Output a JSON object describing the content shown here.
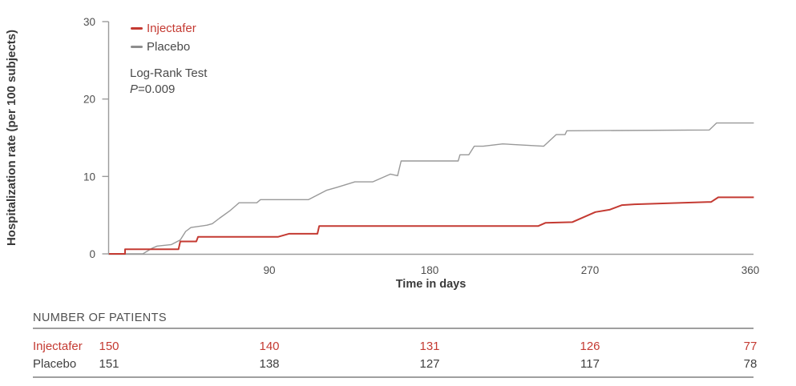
{
  "chart_data": {
    "type": "line",
    "subtype": "kaplan-meier-step",
    "title": "",
    "xlabel": "Time in days",
    "ylabel": "Hospitalization rate (per 100 subjects)",
    "xlim": [
      0,
      362
    ],
    "ylim": [
      0,
      30
    ],
    "x_ticks": [
      90,
      180,
      270,
      360
    ],
    "y_ticks": [
      0,
      10,
      20,
      30
    ],
    "grid": false,
    "legend_position": "top-left",
    "series": [
      {
        "name": "Injectafer",
        "color": "#c43a32",
        "stroke_width": 2,
        "points": [
          [
            0,
            0
          ],
          [
            9,
            0
          ],
          [
            9,
            0.6
          ],
          [
            39,
            0.6
          ],
          [
            40,
            1.6
          ],
          [
            49,
            1.6
          ],
          [
            50,
            2.2
          ],
          [
            95,
            2.2
          ],
          [
            101,
            2.6
          ],
          [
            117,
            2.6
          ],
          [
            118,
            3.6
          ],
          [
            241,
            3.6
          ],
          [
            245,
            4.0
          ],
          [
            260,
            4.1
          ],
          [
            273,
            5.4
          ],
          [
            281,
            5.7
          ],
          [
            288,
            6.3
          ],
          [
            295,
            6.4
          ],
          [
            336,
            6.7
          ],
          [
            338,
            6.7
          ],
          [
            342,
            7.3
          ],
          [
            362,
            7.3
          ]
        ]
      },
      {
        "name": "Placebo",
        "color": "#999999",
        "stroke_width": 1.4,
        "points": [
          [
            0,
            0
          ],
          [
            19,
            0
          ],
          [
            24,
            0.7
          ],
          [
            27,
            1.0
          ],
          [
            35,
            1.2
          ],
          [
            40,
            1.8
          ],
          [
            43,
            2.9
          ],
          [
            46,
            3.4
          ],
          [
            55,
            3.7
          ],
          [
            58,
            3.9
          ],
          [
            62,
            4.6
          ],
          [
            68,
            5.6
          ],
          [
            71,
            6.2
          ],
          [
            73,
            6.6
          ],
          [
            83,
            6.6
          ],
          [
            85,
            7.0
          ],
          [
            112,
            7.0
          ],
          [
            122,
            8.2
          ],
          [
            128,
            8.6
          ],
          [
            138,
            9.3
          ],
          [
            148,
            9.3
          ],
          [
            158,
            10.3
          ],
          [
            162,
            10.1
          ],
          [
            164,
            12.0
          ],
          [
            196,
            12.0
          ],
          [
            197,
            12.8
          ],
          [
            202,
            12.8
          ],
          [
            205,
            13.9
          ],
          [
            210,
            13.9
          ],
          [
            221,
            14.2
          ],
          [
            244,
            13.9
          ],
          [
            251,
            15.4
          ],
          [
            256,
            15.4
          ],
          [
            257,
            15.9
          ],
          [
            337,
            16.0
          ],
          [
            341,
            16.9
          ],
          [
            362,
            16.9
          ]
        ]
      }
    ],
    "annotation": "Log-Rank Test P=0.009"
  },
  "legend": {
    "items": [
      {
        "label": "Injectafer",
        "color": "#c43a32"
      },
      {
        "label": "Placebo",
        "color": "#8d8d8d"
      }
    ]
  },
  "annotation": {
    "line1": "Log-Rank Test",
    "p_symbol": "P",
    "p_rest": "=0.009"
  },
  "axes": {
    "y_label": "Hospitalization rate (per 100 subjects)",
    "x_label": "Time in days"
  },
  "patients_table": {
    "title": "NUMBER OF PATIENTS",
    "columns_days": [
      0,
      90,
      180,
      270,
      360
    ],
    "rows": [
      {
        "name": "Injectafer",
        "color": "#c43a32",
        "values": [
          "150",
          "140",
          "131",
          "126",
          "77"
        ]
      },
      {
        "name": "Placebo",
        "color": "#3f3f3f",
        "values": [
          "151",
          "138",
          "127",
          "117",
          "78"
        ]
      }
    ]
  }
}
